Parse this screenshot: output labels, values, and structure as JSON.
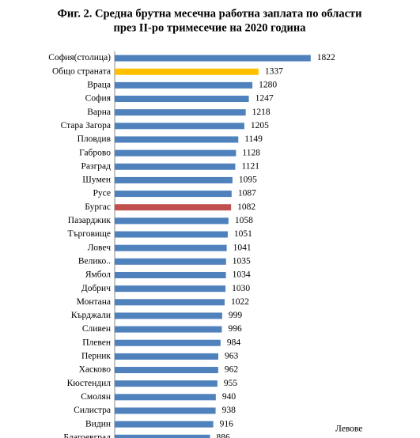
{
  "chart_data": {
    "type": "hbar",
    "title": [
      "Фиг. 2. Средна брутна месечна работна заплата по области",
      "през II-ро тримесечие на 2020 година"
    ],
    "x_label": "Левове",
    "categories": [
      "София(столица)",
      "Общо страната",
      "Враца",
      "София",
      "Варна",
      "Стара Загора",
      "Пловдив",
      "Габрово",
      "Разград",
      "Шумен",
      "Русе",
      "Бургас",
      "Пазарджик",
      "Търговище",
      "Ловеч",
      "Велико..",
      "Ямбол",
      "Добрич",
      "Монтана",
      "Кърджали",
      "Сливен",
      "Плевен",
      "Перник",
      "Хасково",
      "Кюстендил",
      "Смолян",
      "Силистра",
      "Видин",
      "Благоевград"
    ],
    "values": [
      1822,
      1337,
      1280,
      1247,
      1218,
      1205,
      1149,
      1128,
      1121,
      1095,
      1087,
      1082,
      1058,
      1051,
      1041,
      1035,
      1034,
      1030,
      1022,
      999,
      996,
      984,
      963,
      962,
      955,
      940,
      938,
      916,
      886
    ],
    "colors": [
      "#4f81bd",
      "#ffc000",
      "#4f81bd",
      "#4f81bd",
      "#4f81bd",
      "#4f81bd",
      "#4f81bd",
      "#4f81bd",
      "#4f81bd",
      "#4f81bd",
      "#4f81bd",
      "#c0504d",
      "#4f81bd",
      "#4f81bd",
      "#4f81bd",
      "#4f81bd",
      "#4f81bd",
      "#4f81bd",
      "#4f81bd",
      "#4f81bd",
      "#4f81bd",
      "#4f81bd",
      "#4f81bd",
      "#4f81bd",
      "#4f81bd",
      "#4f81bd",
      "#4f81bd",
      "#4f81bd",
      "#4f81bd"
    ],
    "xlim": [
      0,
      2000
    ]
  }
}
